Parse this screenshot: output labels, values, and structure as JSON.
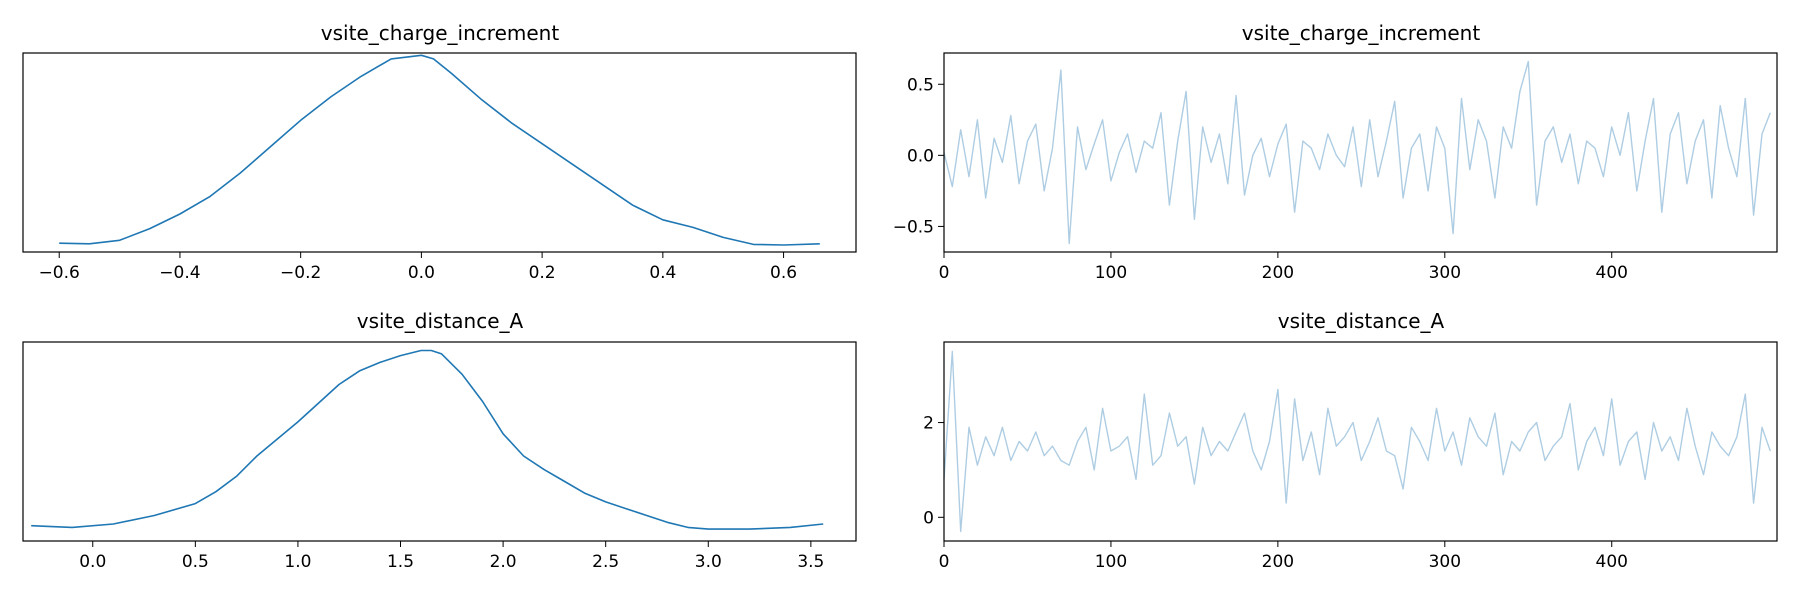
{
  "colors": {
    "kde": "#1f77b4",
    "trace": "#aecde3"
  },
  "chart_data": [
    {
      "type": "line",
      "title": "vsite_charge_increment",
      "xlabel": "",
      "ylabel": "",
      "xlim": [
        -0.66,
        0.72
      ],
      "ylim": [
        -0.1,
        3.3
      ],
      "xticks": [
        -0.6,
        -0.4,
        -0.2,
        0.0,
        0.2,
        0.4,
        0.6
      ],
      "xtick_labels": [
        "−0.6",
        "−0.4",
        "−0.2",
        "0.0",
        "0.2",
        "0.4",
        "0.6"
      ],
      "yticks": [],
      "ytick_labels": [],
      "series": [
        {
          "x": [
            -0.6,
            -0.55,
            -0.5,
            -0.45,
            -0.4,
            -0.35,
            -0.3,
            -0.25,
            -0.2,
            -0.15,
            -0.1,
            -0.05,
            0.0,
            0.02,
            0.05,
            0.1,
            0.15,
            0.2,
            0.25,
            0.3,
            0.35,
            0.4,
            0.45,
            0.5,
            0.55,
            0.6,
            0.66
          ],
          "y": [
            0.05,
            0.04,
            0.1,
            0.3,
            0.55,
            0.85,
            1.25,
            1.7,
            2.15,
            2.55,
            2.9,
            3.2,
            3.26,
            3.2,
            2.95,
            2.5,
            2.1,
            1.75,
            1.4,
            1.05,
            0.7,
            0.45,
            0.32,
            0.15,
            0.03,
            0.02,
            0.04
          ]
        }
      ]
    },
    {
      "type": "line",
      "title": "vsite_charge_increment",
      "xlabel": "",
      "ylabel": "",
      "xlim": [
        0,
        499
      ],
      "ylim": [
        -0.68,
        0.72
      ],
      "xticks": [
        0,
        100,
        200,
        300,
        400
      ],
      "xtick_labels": [
        "0",
        "100",
        "200",
        "300",
        "400"
      ],
      "yticks": [
        -0.5,
        0.0,
        0.5
      ],
      "ytick_labels": [
        "−0.5",
        "0.0",
        "0.5"
      ],
      "series": [
        {
          "x_start": 0,
          "x_step": 5,
          "y": [
            0.02,
            -0.22,
            0.18,
            -0.15,
            0.25,
            -0.3,
            0.12,
            -0.05,
            0.28,
            -0.2,
            0.1,
            0.22,
            -0.25,
            0.05,
            0.6,
            -0.62,
            0.2,
            -0.1,
            0.08,
            0.25,
            -0.18,
            0.02,
            0.15,
            -0.12,
            0.1,
            0.05,
            0.3,
            -0.35,
            0.1,
            0.45,
            -0.45,
            0.2,
            -0.05,
            0.15,
            -0.2,
            0.42,
            -0.28,
            0.0,
            0.12,
            -0.15,
            0.08,
            0.22,
            -0.4,
            0.1,
            0.05,
            -0.1,
            0.15,
            0.0,
            -0.08,
            0.2,
            -0.22,
            0.25,
            -0.15,
            0.1,
            0.38,
            -0.3,
            0.05,
            0.15,
            -0.25,
            0.2,
            0.05,
            -0.55,
            0.4,
            -0.1,
            0.25,
            0.1,
            -0.3,
            0.2,
            0.05,
            0.45,
            0.66,
            -0.35,
            0.1,
            0.2,
            -0.05,
            0.15,
            -0.2,
            0.1,
            0.05,
            -0.15,
            0.2,
            0.0,
            0.3,
            -0.25,
            0.1,
            0.4,
            -0.4,
            0.15,
            0.3,
            -0.2,
            0.1,
            0.25,
            -0.3,
            0.35,
            0.05,
            -0.15,
            0.4,
            -0.42,
            0.15,
            0.3
          ]
        }
      ]
    },
    {
      "type": "line",
      "title": "vsite_distance_A",
      "xlabel": "",
      "ylabel": "",
      "xlim": [
        -0.34,
        3.72
      ],
      "ylim": [
        -0.05,
        1.12
      ],
      "xticks": [
        0.0,
        0.5,
        1.0,
        1.5,
        2.0,
        2.5,
        3.0,
        3.5
      ],
      "xtick_labels": [
        "0.0",
        "0.5",
        "1.0",
        "1.5",
        "2.0",
        "2.5",
        "3.0",
        "3.5"
      ],
      "yticks": [],
      "ytick_labels": [],
      "series": [
        {
          "x": [
            -0.3,
            -0.1,
            0.1,
            0.3,
            0.5,
            0.6,
            0.7,
            0.8,
            1.0,
            1.2,
            1.3,
            1.4,
            1.5,
            1.6,
            1.65,
            1.7,
            1.8,
            1.9,
            2.0,
            2.1,
            2.2,
            2.3,
            2.4,
            2.5,
            2.6,
            2.7,
            2.8,
            2.9,
            3.0,
            3.2,
            3.4,
            3.56
          ],
          "y": [
            0.04,
            0.03,
            0.05,
            0.1,
            0.17,
            0.24,
            0.33,
            0.45,
            0.65,
            0.87,
            0.95,
            1.0,
            1.04,
            1.07,
            1.07,
            1.05,
            0.93,
            0.77,
            0.58,
            0.45,
            0.37,
            0.3,
            0.23,
            0.18,
            0.14,
            0.1,
            0.06,
            0.03,
            0.02,
            0.02,
            0.03,
            0.05
          ]
        }
      ]
    },
    {
      "type": "line",
      "title": "vsite_distance_A",
      "xlabel": "",
      "ylabel": "",
      "xlim": [
        0,
        499
      ],
      "ylim": [
        -0.5,
        3.7
      ],
      "xticks": [
        0,
        100,
        200,
        300,
        400
      ],
      "xtick_labels": [
        "0",
        "100",
        "200",
        "300",
        "400"
      ],
      "yticks": [
        0,
        2
      ],
      "ytick_labels": [
        "0",
        "2"
      ],
      "series": [
        {
          "x_start": 0,
          "x_step": 5,
          "y": [
            0.8,
            3.5,
            -0.3,
            1.9,
            1.1,
            1.7,
            1.3,
            1.9,
            1.2,
            1.6,
            1.4,
            1.8,
            1.3,
            1.5,
            1.2,
            1.1,
            1.6,
            1.9,
            1.0,
            2.3,
            1.4,
            1.5,
            1.7,
            0.8,
            2.6,
            1.1,
            1.3,
            2.2,
            1.5,
            1.7,
            0.7,
            1.9,
            1.3,
            1.6,
            1.4,
            1.8,
            2.2,
            1.4,
            1.0,
            1.6,
            2.7,
            0.3,
            2.5,
            1.2,
            1.8,
            0.9,
            2.3,
            1.5,
            1.7,
            2.0,
            1.2,
            1.6,
            2.1,
            1.4,
            1.3,
            0.6,
            1.9,
            1.6,
            1.2,
            2.3,
            1.4,
            1.8,
            1.1,
            2.1,
            1.7,
            1.5,
            2.2,
            0.9,
            1.6,
            1.4,
            1.8,
            2.0,
            1.2,
            1.5,
            1.7,
            2.4,
            1.0,
            1.6,
            1.9,
            1.3,
            2.5,
            1.1,
            1.6,
            1.8,
            0.8,
            2.0,
            1.4,
            1.7,
            1.2,
            2.3,
            1.5,
            0.9,
            1.8,
            1.5,
            1.3,
            1.7,
            2.6,
            0.3,
            1.9,
            1.4
          ]
        }
      ]
    }
  ]
}
